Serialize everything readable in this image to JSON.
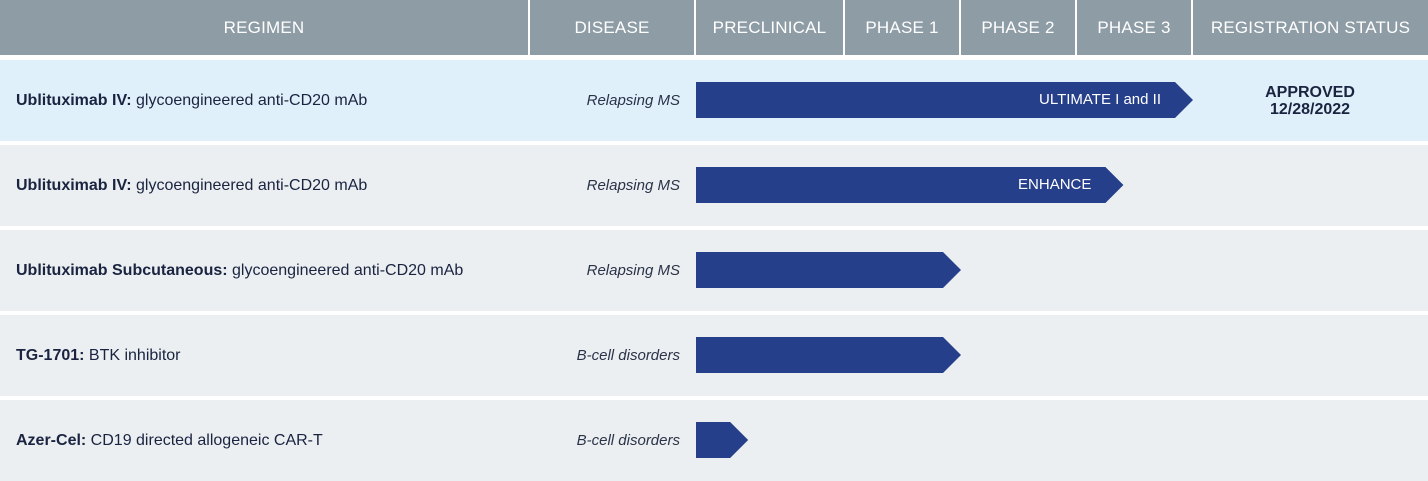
{
  "colors": {
    "header_bg": "#8e9ca6",
    "bar": "#263f8a",
    "row_bg": "#ebeff1",
    "row_highlight_bg": "#dff0fa"
  },
  "header": {
    "regimen": "REGIMEN",
    "disease": "DISEASE",
    "preclinical": "PRECLINICAL",
    "phase1": "PHASE 1",
    "phase2": "PHASE 2",
    "phase3": "PHASE 3",
    "registration": "REGISTRATION STATUS"
  },
  "chart_data": {
    "type": "bar",
    "categories": [
      "PRECLINICAL",
      "PHASE 1",
      "PHASE 2",
      "PHASE 3",
      "REGISTRATION STATUS"
    ],
    "rows": [
      {
        "name_bold": "Ublituximab IV:",
        "name_rest": " glycoengineered anti-CD20 mAb",
        "disease": "Relapsing MS",
        "progress_stage": 4.0,
        "bar_label": "ULTIMATE I and II",
        "status_line1": "APPROVED",
        "status_line2": "12/28/2022",
        "highlight": true
      },
      {
        "name_bold": "Ublituximab IV:",
        "name_rest": " glycoengineered anti-CD20 mAb",
        "disease": "Relapsing MS",
        "progress_stage": 3.4,
        "bar_label": "ENHANCE",
        "status_line1": "",
        "status_line2": "",
        "highlight": false
      },
      {
        "name_bold": "Ublituximab Subcutaneous:",
        "name_rest": " glycoengineered anti-CD20 mAb",
        "disease": "Relapsing MS",
        "progress_stage": 2.0,
        "bar_label": "",
        "status_line1": "",
        "status_line2": "",
        "highlight": false
      },
      {
        "name_bold": "TG-1701:",
        "name_rest": " BTK inhibitor",
        "disease": "B-cell disorders",
        "progress_stage": 2.0,
        "bar_label": "",
        "status_line1": "",
        "status_line2": "",
        "highlight": false
      },
      {
        "name_bold": "Azer-Cel:",
        "name_rest": " CD19 directed allogeneic CAR-T",
        "disease": "B-cell disorders",
        "progress_stage": 0.35,
        "bar_label": "",
        "status_line1": "",
        "status_line2": "",
        "highlight": false
      }
    ]
  }
}
